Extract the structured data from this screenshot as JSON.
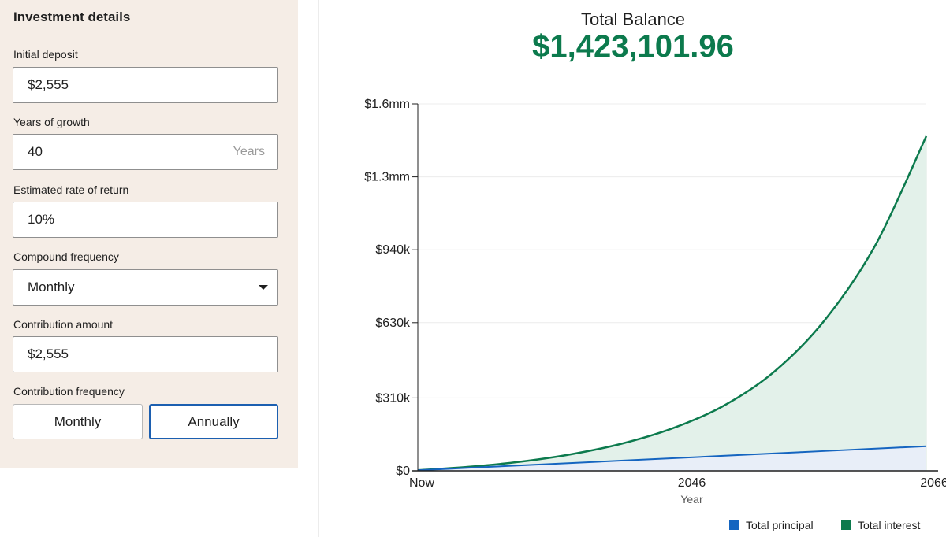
{
  "form": {
    "title": "Investment details",
    "initial_deposit": {
      "label": "Initial deposit",
      "value": "$2,555"
    },
    "years_of_growth": {
      "label": "Years of growth",
      "value": "40",
      "suffix": "Years"
    },
    "rate_of_return": {
      "label": "Estimated rate of return",
      "value": "10%"
    },
    "compound_frequency": {
      "label": "Compound frequency",
      "value": "Monthly"
    },
    "contribution_amount": {
      "label": "Contribution amount",
      "value": "$2,555"
    },
    "contribution_frequency": {
      "label": "Contribution frequency",
      "options": [
        "Monthly",
        "Annually"
      ],
      "selected": "Annually"
    }
  },
  "summary": {
    "label": "Total Balance",
    "value": "$1,423,101.96"
  },
  "colors": {
    "principal": "#1565c0",
    "interest": "#0c7a4d",
    "principal_fill": "#e8eef8",
    "interest_fill": "#e3f1ea",
    "selected_border": "#1c5fb0"
  },
  "chart_data": {
    "type": "area",
    "xlabel": "Year",
    "x_tick_labels": [
      "Now",
      "2046",
      "2066"
    ],
    "x": [
      2026,
      2030,
      2034,
      2038,
      2042,
      2046,
      2050,
      2054,
      2058,
      2062,
      2066
    ],
    "y_tick_labels": [
      "$0",
      "$310k",
      "$630k",
      "$940k",
      "$1.3mm",
      "$1.6mm"
    ],
    "y_tick_values": [
      0,
      310000,
      630000,
      940000,
      1250000,
      1560000
    ],
    "ylim": [
      0,
      1560000
    ],
    "xlim": [
      2026,
      2066
    ],
    "grid": "horizontal",
    "legend_position": "bottom-right",
    "series": [
      {
        "name": "Total principal",
        "values": [
          2555,
          12775,
          22995,
          33215,
          43435,
          53655,
          63875,
          74095,
          84315,
          94535,
          104755
        ]
      },
      {
        "name": "Total interest",
        "values": [
          2555,
          17000,
          38500,
          70000,
          115000,
          180000,
          275000,
          420000,
          640000,
          960000,
          1423102
        ]
      }
    ]
  }
}
